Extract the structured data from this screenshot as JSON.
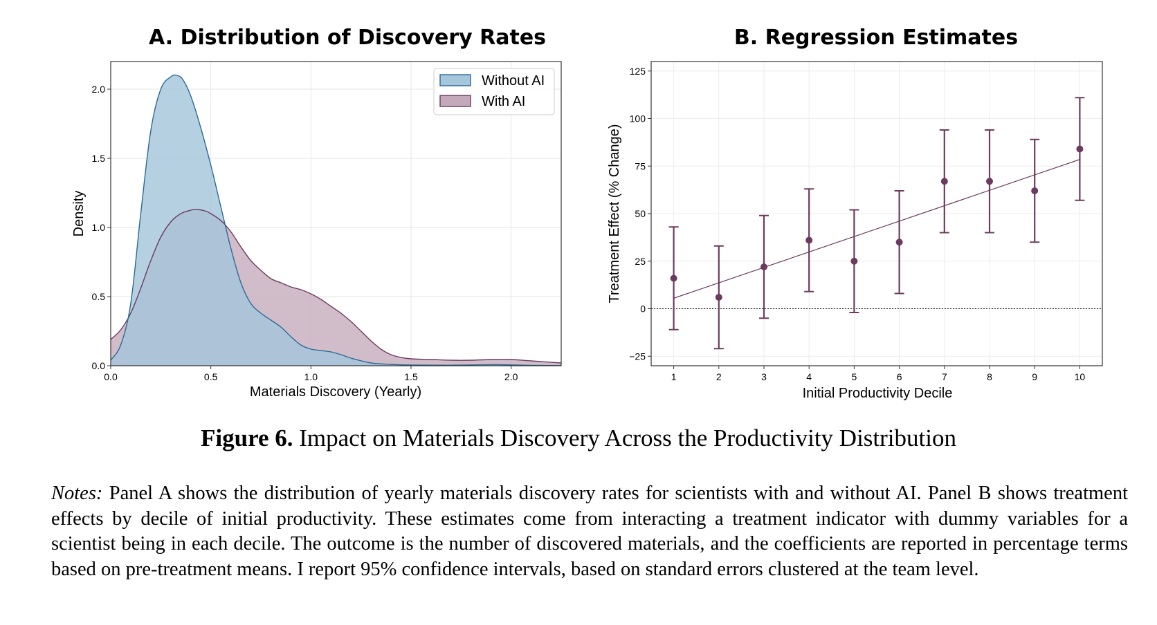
{
  "panel_a": {
    "title": "A. Distribution of Discovery Rates",
    "xlabel": "Materials Discovery (Yearly)",
    "ylabel": "Density",
    "xlim": [
      0,
      2.25
    ],
    "ylim": [
      0,
      2.2
    ],
    "xticks": [
      "0.0",
      "0.5",
      "1.0",
      "1.5",
      "2.0"
    ],
    "yticks": [
      "0.0",
      "0.5",
      "1.0",
      "1.5",
      "2.0"
    ],
    "legend": {
      "items": [
        "Without AI",
        "With AI"
      ],
      "placement": "upper-right"
    },
    "colors": {
      "without_fill": "#a5c6db",
      "without_line": "#2b6a96",
      "with_fill": "#c4a9bb",
      "with_line": "#6b3b5f"
    }
  },
  "panel_b": {
    "title": "B. Regression Estimates",
    "xlabel": "Initial Productivity Decile",
    "ylabel": "Treatment Effect (% Change)",
    "xticks": [
      "1",
      "2",
      "3",
      "4",
      "5",
      "6",
      "7",
      "8",
      "9",
      "10"
    ],
    "yticks": [
      "−25",
      "0",
      "25",
      "50",
      "75",
      "100",
      "125"
    ],
    "color": "#6b3b5f"
  },
  "chart_data": [
    {
      "type": "area",
      "title": "A. Distribution of Discovery Rates",
      "xlabel": "Materials Discovery (Yearly)",
      "ylabel": "Density",
      "xlim": [
        0,
        2.25
      ],
      "ylim": [
        0,
        2.2
      ],
      "grid": true,
      "legend_placement": "upper-right",
      "series": [
        {
          "name": "Without AI",
          "x": [
            0,
            0.05,
            0.1,
            0.15,
            0.2,
            0.25,
            0.3,
            0.33,
            0.36,
            0.4,
            0.45,
            0.5,
            0.55,
            0.6,
            0.65,
            0.7,
            0.75,
            0.8,
            0.85,
            0.9,
            0.95,
            1.0,
            1.05,
            1.1,
            1.15,
            1.2,
            1.3,
            1.4,
            1.5,
            1.7,
            1.9,
            2.0,
            2.1,
            2.25
          ],
          "y": [
            0.04,
            0.15,
            0.45,
            1.1,
            1.7,
            2.0,
            2.09,
            2.1,
            2.07,
            1.95,
            1.72,
            1.45,
            1.15,
            0.85,
            0.6,
            0.45,
            0.38,
            0.33,
            0.28,
            0.21,
            0.15,
            0.12,
            0.11,
            0.1,
            0.08,
            0.055,
            0.02,
            0.01,
            0.005,
            0.004,
            0.008,
            0.006,
            0.003,
            0.001
          ]
        },
        {
          "name": "With AI",
          "x": [
            0,
            0.05,
            0.1,
            0.15,
            0.2,
            0.25,
            0.3,
            0.35,
            0.4,
            0.43,
            0.47,
            0.5,
            0.55,
            0.6,
            0.65,
            0.7,
            0.75,
            0.8,
            0.85,
            0.9,
            0.95,
            1.0,
            1.05,
            1.1,
            1.15,
            1.2,
            1.25,
            1.3,
            1.35,
            1.4,
            1.45,
            1.5,
            1.6,
            1.7,
            1.8,
            1.9,
            2.0,
            2.1,
            2.25
          ],
          "y": [
            0.19,
            0.26,
            0.38,
            0.56,
            0.76,
            0.93,
            1.04,
            1.1,
            1.125,
            1.13,
            1.12,
            1.1,
            1.05,
            0.97,
            0.86,
            0.76,
            0.69,
            0.63,
            0.6,
            0.57,
            0.55,
            0.52,
            0.48,
            0.43,
            0.38,
            0.32,
            0.25,
            0.18,
            0.12,
            0.08,
            0.06,
            0.05,
            0.045,
            0.04,
            0.04,
            0.045,
            0.045,
            0.035,
            0.02
          ]
        }
      ]
    },
    {
      "type": "scatter",
      "title": "B. Regression Estimates",
      "xlabel": "Initial Productivity Decile",
      "ylabel": "Treatment Effect (% Change)",
      "xlim": [
        0.5,
        10.5
      ],
      "ylim": [
        -30,
        130
      ],
      "grid": true,
      "x": [
        1,
        2,
        3,
        4,
        5,
        6,
        7,
        8,
        9,
        10
      ],
      "y": [
        16,
        6,
        22,
        36,
        25,
        35,
        67,
        67,
        62,
        84
      ],
      "ci_low": [
        -11,
        -21,
        -5,
        9,
        -2,
        8,
        40,
        40,
        35,
        57
      ],
      "ci_high": [
        43,
        33,
        49,
        63,
        52,
        62,
        94,
        94,
        89,
        111
      ],
      "fit_line": {
        "x": [
          1,
          10
        ],
        "y": [
          5.5,
          78.5
        ]
      },
      "reference_line": {
        "y": 0,
        "style": "dotted"
      }
    }
  ],
  "caption": {
    "number": "Figure 6.",
    "text": "Impact on Materials Discovery Across the Productivity Distribution"
  },
  "notes": {
    "label": "Notes:",
    "text": "Panel A shows the distribution of yearly materials discovery rates for scientists with and without AI. Panel B shows treatment effects by decile of initial productivity. These estimates come from interacting a treatment indicator with dummy variables for a scientist being in each decile. The outcome is the number of discovered materials, and the coefficients are reported in percentage terms based on pre-treatment means. I report 95% confidence intervals, based on standard errors clustered at the team level."
  }
}
